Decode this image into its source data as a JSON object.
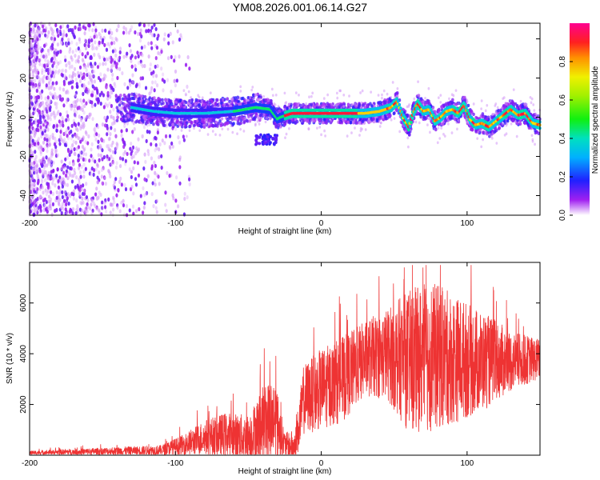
{
  "title": "YM08.2026.001.06.14.G27",
  "chart_data": [
    {
      "type": "heatmap",
      "name": "spectrogram",
      "xlabel": "Height of straight line (km)",
      "ylabel": "Frequency (Hz)",
      "xlim": [
        -200,
        150
      ],
      "ylim": [
        -50,
        48
      ],
      "xticks": [
        "-200",
        "-100",
        "0",
        "100"
      ],
      "yticks": [
        "40",
        "20",
        "0",
        "-20",
        "-40"
      ],
      "colorbar": {
        "label": "Normalized spectral amplitude",
        "range": [
          0,
          1
        ],
        "ticks": [
          "0.0",
          "0.2",
          "0.4",
          "0.6",
          "0.8"
        ]
      },
      "dominant_frequency_trace": [
        {
          "x": -130,
          "y": 5
        },
        {
          "x": -115,
          "y": 3
        },
        {
          "x": -100,
          "y": 2
        },
        {
          "x": -80,
          "y": 2
        },
        {
          "x": -60,
          "y": 3
        },
        {
          "x": -45,
          "y": 5
        },
        {
          "x": -35,
          "y": 4
        },
        {
          "x": -30,
          "y": -1
        },
        {
          "x": -28,
          "y": 0
        },
        {
          "x": -20,
          "y": 2
        },
        {
          "x": 0,
          "y": 2
        },
        {
          "x": 20,
          "y": 2
        },
        {
          "x": 30,
          "y": 2
        },
        {
          "x": 40,
          "y": 3
        },
        {
          "x": 48,
          "y": 5
        },
        {
          "x": 52,
          "y": 8
        },
        {
          "x": 56,
          "y": 0
        },
        {
          "x": 60,
          "y": -5
        },
        {
          "x": 63,
          "y": 2
        },
        {
          "x": 66,
          "y": 7
        },
        {
          "x": 70,
          "y": 3
        },
        {
          "x": 74,
          "y": 4
        },
        {
          "x": 78,
          "y": -2
        },
        {
          "x": 82,
          "y": 0
        },
        {
          "x": 86,
          "y": 3
        },
        {
          "x": 90,
          "y": 4
        },
        {
          "x": 94,
          "y": 2
        },
        {
          "x": 98,
          "y": 6
        },
        {
          "x": 102,
          "y": -1
        },
        {
          "x": 106,
          "y": -4
        },
        {
          "x": 110,
          "y": -3
        },
        {
          "x": 115,
          "y": -5
        },
        {
          "x": 120,
          "y": -2
        },
        {
          "x": 125,
          "y": 1
        },
        {
          "x": 130,
          "y": 4
        },
        {
          "x": 135,
          "y": 1
        },
        {
          "x": 140,
          "y": 2
        },
        {
          "x": 145,
          "y": -3
        },
        {
          "x": 150,
          "y": -4
        }
      ]
    },
    {
      "type": "line",
      "name": "snr",
      "xlabel": "Height of straight line (km)",
      "ylabel": "SNR (10 * v/v)",
      "xlim": [
        -200,
        150
      ],
      "ylim": [
        0,
        7600
      ],
      "xticks": [
        "-200",
        "-100",
        "0",
        "100"
      ],
      "yticks": [
        "6000",
        "4000",
        "2000"
      ],
      "color": "#ee3333",
      "envelope": [
        {
          "x": -200,
          "base": 100,
          "spread": 80
        },
        {
          "x": -150,
          "base": 150,
          "spread": 150
        },
        {
          "x": -110,
          "base": 200,
          "spread": 200
        },
        {
          "x": -95,
          "base": 400,
          "spread": 400
        },
        {
          "x": -80,
          "base": 700,
          "spread": 700
        },
        {
          "x": -65,
          "base": 800,
          "spread": 900
        },
        {
          "x": -50,
          "base": 700,
          "spread": 900
        },
        {
          "x": -40,
          "base": 1200,
          "spread": 1500
        },
        {
          "x": -32,
          "base": 1500,
          "spread": 1700
        },
        {
          "x": -25,
          "base": 400,
          "spread": 500
        },
        {
          "x": -18,
          "base": 300,
          "spread": 700
        },
        {
          "x": -12,
          "base": 2200,
          "spread": 1400
        },
        {
          "x": 0,
          "base": 2600,
          "spread": 1600
        },
        {
          "x": 15,
          "base": 3000,
          "spread": 1700
        },
        {
          "x": 30,
          "base": 3800,
          "spread": 1500
        },
        {
          "x": 45,
          "base": 4000,
          "spread": 1800
        },
        {
          "x": 60,
          "base": 3700,
          "spread": 2800
        },
        {
          "x": 75,
          "base": 3900,
          "spread": 3000
        },
        {
          "x": 90,
          "base": 3800,
          "spread": 2600
        },
        {
          "x": 110,
          "base": 3700,
          "spread": 2000
        },
        {
          "x": 130,
          "base": 3700,
          "spread": 1200
        },
        {
          "x": 150,
          "base": 3800,
          "spread": 800
        }
      ]
    }
  ]
}
